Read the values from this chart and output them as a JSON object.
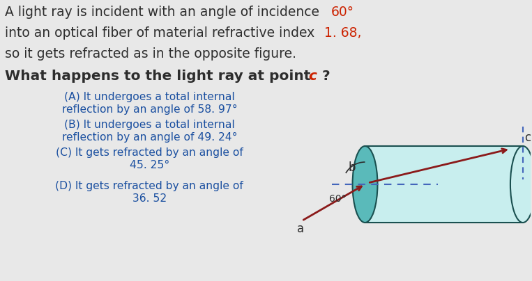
{
  "bg_color": "#e8e8e8",
  "text_color_main": "#2d2d2d",
  "text_color_red": "#cc2200",
  "text_color_blue": "#1a4fa0",
  "fiber_color": "#c8eeee",
  "fiber_edge_color": "#1a5050",
  "fiber_ellipse_color": "#5ababa",
  "ray_color": "#8b1a1a",
  "dashed_color": "#4466bb",
  "label_color": "#2d2d2d",
  "line1_normal": "A light ray is incident with an angle of incidence ",
  "line1_red": "60°",
  "line2_normal": "into an optical fiber of material refractive index ",
  "line2_red": "1. 68,",
  "line3": "so it gets refracted as in the opposite figure.",
  "line4_normal": "What happens to the light ray at point ",
  "line4_italic_red": "c",
  "line4_end": " ?",
  "optA1": "(A) It undergoes a total internal",
  "optA2": "reflection by an angle of 58. 97°",
  "optB1": "(B) It undergoes a total internal",
  "optB2": "reflection by an angle of 49. 24°",
  "optC1": "(C) It gets refracted by an angle of",
  "optC2": "45. 25°",
  "optD1": "(D) It gets refracted by an angle of",
  "optD2": "36. 52"
}
